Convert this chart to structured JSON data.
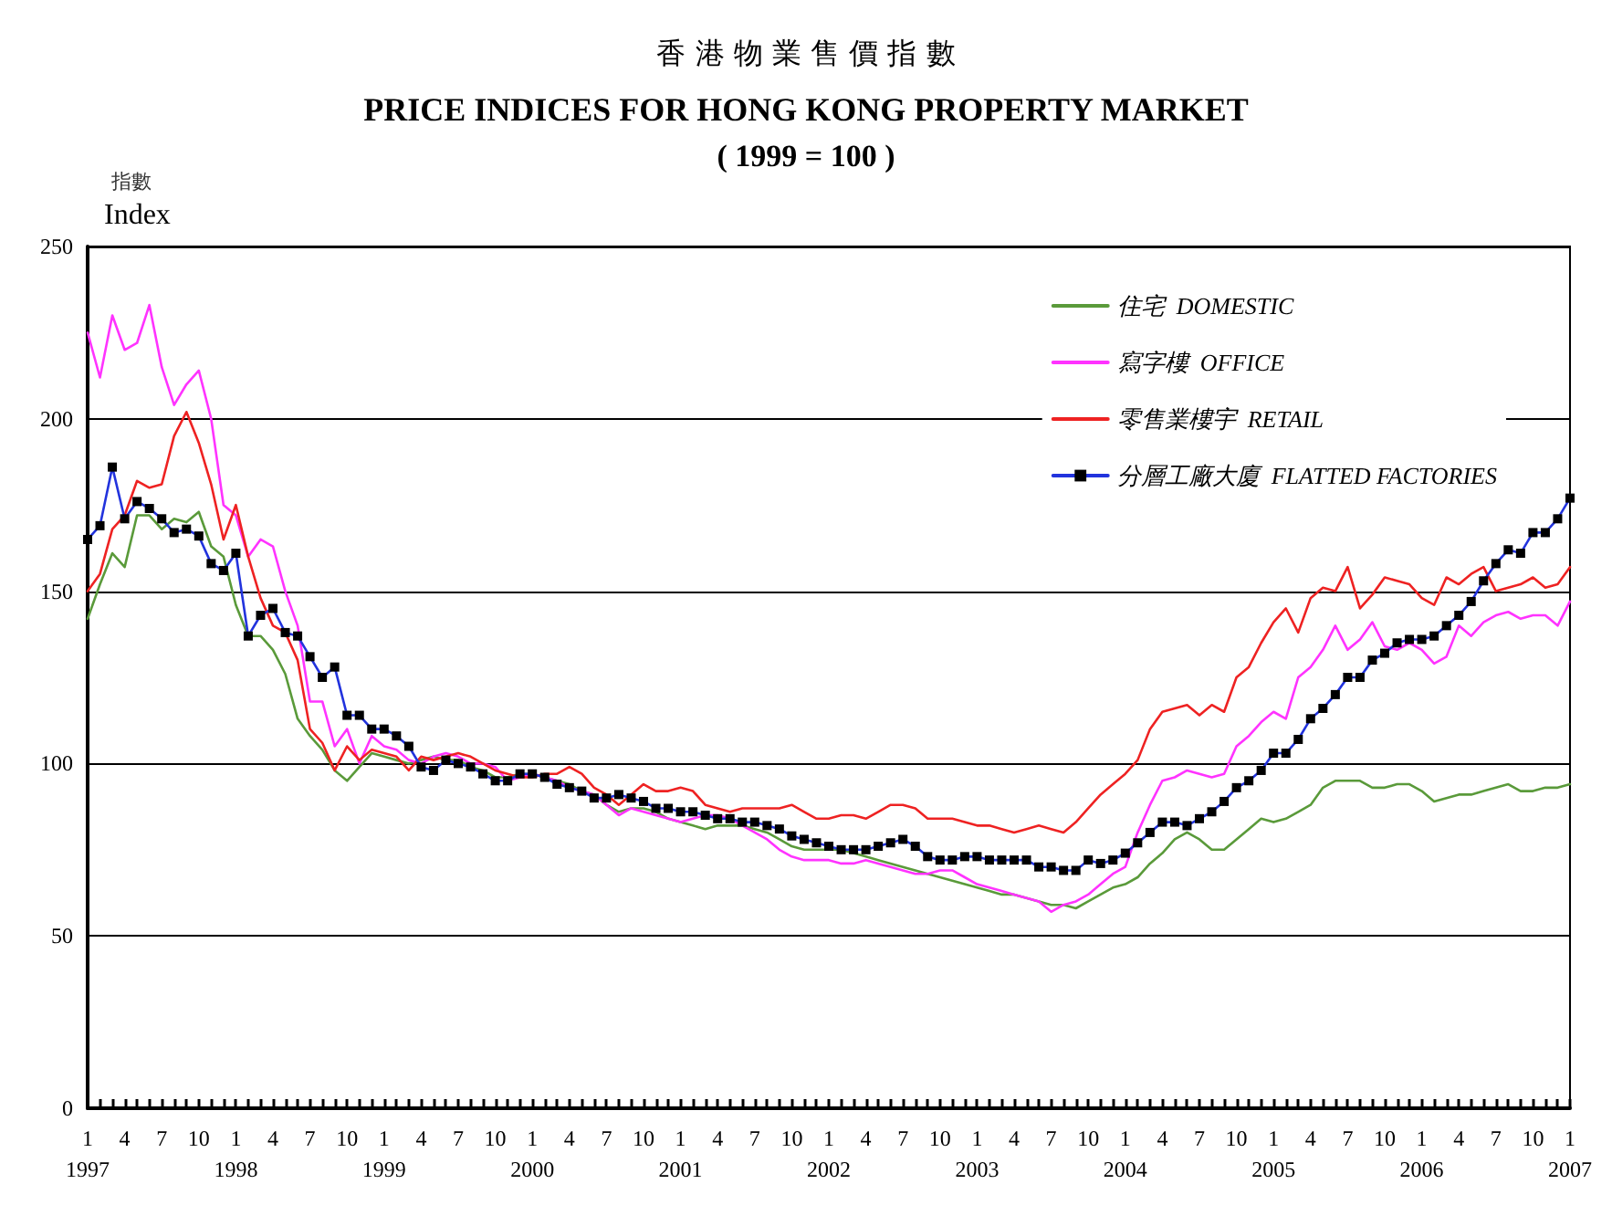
{
  "chart_data": {
    "type": "line",
    "title": "香 港 物 業 售 價 指 數\nPRICE INDICES FOR HONG KONG PROPERTY MARKET",
    "subtitle": "( 1999 = 100 )",
    "ylabel": "指數\nIndex",
    "categories": [
      "1\n1997",
      null,
      null,
      "4",
      null,
      null,
      "7",
      null,
      null,
      "10",
      null,
      null,
      "1\n1998",
      null,
      null,
      "4",
      null,
      null,
      "7",
      null,
      null,
      "10",
      null,
      null,
      "1\n1999",
      null,
      null,
      "4",
      null,
      null,
      "7",
      null,
      null,
      "10",
      null,
      null,
      "1\n2000",
      null,
      null,
      "4",
      null,
      null,
      "7",
      null,
      null,
      "10",
      null,
      null,
      "1\n2001",
      null,
      null,
      "4",
      null,
      null,
      "7",
      null,
      null,
      "10",
      null,
      null,
      "1\n2002",
      null,
      null,
      "4",
      null,
      null,
      "7",
      null,
      null,
      "10",
      null,
      null,
      "1\n2003",
      null,
      null,
      "4",
      null,
      null,
      "7",
      null,
      null,
      "10",
      null,
      null,
      "1\n2004",
      null,
      null,
      "4",
      null,
      null,
      "7",
      null,
      null,
      "10",
      null,
      null,
      "1\n2005",
      null,
      null,
      "4",
      null,
      null,
      "7",
      null,
      null,
      "10",
      null,
      null,
      "1\n2006",
      null,
      null,
      "4",
      null,
      null,
      "7",
      null,
      null,
      "10",
      null,
      null,
      "1\n2007"
    ],
    "series": [
      {
        "name": "住宅  DOMESTIC",
        "color": "#5a9a3a",
        "marker": "none",
        "values": [
          142,
          152,
          161,
          157,
          172,
          172,
          168,
          171,
          170,
          173,
          163,
          160,
          146,
          137,
          137,
          133,
          126,
          113,
          108,
          104,
          98,
          95,
          99,
          103,
          102,
          101,
          100,
          101,
          102,
          101,
          101,
          99,
          98,
          96,
          96,
          97,
          97,
          96,
          95,
          94,
          92,
          91,
          88,
          86,
          87,
          87,
          86,
          84,
          83,
          82,
          81,
          82,
          82,
          82,
          81,
          80,
          78,
          76,
          75,
          75,
          75,
          75,
          74,
          73,
          72,
          71,
          70,
          69,
          68,
          67,
          66,
          65,
          64,
          63,
          62,
          62,
          61,
          60,
          59,
          59,
          58,
          60,
          62,
          64,
          65,
          67,
          71,
          74,
          78,
          80,
          78,
          75,
          75,
          78,
          81,
          84,
          83,
          84,
          86,
          88,
          93,
          95,
          95,
          95,
          93,
          93,
          94,
          94,
          92,
          89,
          90,
          91,
          91,
          92,
          93,
          94,
          92,
          92,
          93,
          93,
          94
        ]
      },
      {
        "name": "寫字樓  OFFICE",
        "color": "#ff33ff",
        "marker": "none",
        "values": [
          225,
          212,
          230,
          220,
          222,
          233,
          215,
          204,
          210,
          214,
          200,
          175,
          172,
          160,
          165,
          163,
          150,
          140,
          118,
          118,
          105,
          110,
          100,
          108,
          105,
          104,
          101,
          100,
          102,
          103,
          102,
          100,
          100,
          99,
          95,
          96,
          97,
          96,
          95,
          93,
          92,
          91,
          88,
          85,
          87,
          86,
          85,
          84,
          83,
          84,
          85,
          85,
          84,
          82,
          80,
          78,
          75,
          73,
          72,
          72,
          72,
          71,
          71,
          72,
          71,
          70,
          69,
          68,
          68,
          69,
          69,
          67,
          65,
          64,
          63,
          62,
          61,
          60,
          57,
          59,
          60,
          62,
          65,
          68,
          70,
          80,
          88,
          95,
          96,
          98,
          97,
          96,
          97,
          105,
          108,
          112,
          115,
          113,
          125,
          128,
          133,
          140,
          133,
          136,
          141,
          134,
          133,
          135,
          133,
          129,
          131,
          140,
          137,
          141,
          143,
          144,
          142,
          143,
          143,
          140,
          147
        ]
      },
      {
        "name": "零售業樓宇  RETAIL",
        "color": "#ee2222",
        "marker": "none",
        "values": [
          150,
          155,
          168,
          172,
          182,
          180,
          181,
          195,
          202,
          193,
          181,
          165,
          175,
          160,
          148,
          140,
          138,
          130,
          110,
          106,
          98,
          105,
          101,
          104,
          103,
          102,
          98,
          102,
          101,
          102,
          103,
          102,
          100,
          98,
          97,
          96,
          96,
          97,
          97,
          99,
          97,
          93,
          91,
          88,
          91,
          94,
          92,
          92,
          93,
          92,
          88,
          87,
          86,
          87,
          87,
          87,
          87,
          88,
          86,
          84,
          84,
          85,
          85,
          84,
          86,
          88,
          88,
          87,
          84,
          84,
          84,
          83,
          82,
          82,
          81,
          80,
          81,
          82,
          81,
          80,
          83,
          87,
          91,
          94,
          97,
          101,
          110,
          115,
          116,
          117,
          114,
          117,
          115,
          125,
          128,
          135,
          141,
          145,
          138,
          148,
          151,
          150,
          157,
          145,
          149,
          154,
          153,
          152,
          148,
          146,
          154,
          152,
          155,
          157,
          150,
          151,
          152,
          154,
          151,
          152,
          157
        ]
      },
      {
        "name": "分層工廠大廈  FLATTED FACTORIES",
        "color": "#2233dd",
        "marker": "square",
        "values": [
          165,
          169,
          186,
          171,
          176,
          174,
          171,
          167,
          168,
          166,
          158,
          156,
          161,
          137,
          143,
          145,
          138,
          137,
          131,
          125,
          128,
          114,
          114,
          110,
          110,
          108,
          105,
          99,
          98,
          101,
          100,
          99,
          97,
          95,
          95,
          97,
          97,
          96,
          94,
          93,
          92,
          90,
          90,
          91,
          90,
          89,
          87,
          87,
          86,
          86,
          85,
          84,
          84,
          83,
          83,
          82,
          81,
          79,
          78,
          77,
          76,
          75,
          75,
          75,
          76,
          77,
          78,
          76,
          73,
          72,
          72,
          73,
          73,
          72,
          72,
          72,
          72,
          70,
          70,
          69,
          69,
          72,
          71,
          72,
          74,
          77,
          80,
          83,
          83,
          82,
          84,
          86,
          89,
          93,
          95,
          98,
          103,
          103,
          107,
          113,
          116,
          120,
          125,
          125,
          130,
          132,
          135,
          136,
          136,
          137,
          140,
          143,
          147,
          153,
          158,
          162,
          161,
          167,
          167,
          171,
          177
        ]
      }
    ],
    "ylim": [
      0,
      250
    ],
    "yticks": [
      0,
      50,
      100,
      150,
      200,
      250
    ],
    "grid": "y",
    "legend": "top right"
  }
}
